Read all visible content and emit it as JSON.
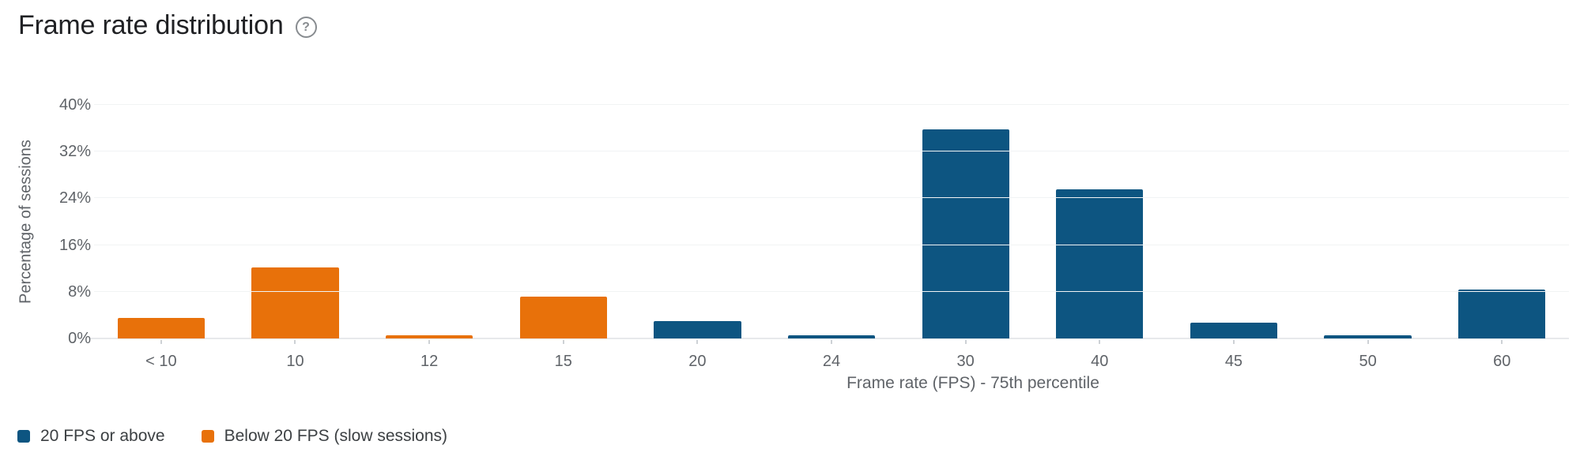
{
  "header": {
    "title": "Frame rate distribution"
  },
  "chart_data": {
    "type": "bar",
    "title": "Frame rate distribution",
    "xlabel": "Frame rate (FPS) - 75th percentile",
    "ylabel": "Percentage of sessions",
    "ylim": [
      0,
      40
    ],
    "grid": true,
    "legend_position": "bottom-left",
    "y_ticks": [
      {
        "label": "40%",
        "value": 40
      },
      {
        "label": "32%",
        "value": 32
      },
      {
        "label": "24%",
        "value": 24
      },
      {
        "label": "16%",
        "value": 16
      },
      {
        "label": "8%",
        "value": 8
      },
      {
        "label": "0%",
        "value": 0
      }
    ],
    "categories": [
      "< 10",
      "10",
      "12",
      "15",
      "20",
      "24",
      "30",
      "40",
      "45",
      "50",
      "60"
    ],
    "series": [
      {
        "name": "20 FPS or above",
        "color": "#0d5581"
      },
      {
        "name": "Below 20 FPS (slow sessions)",
        "color": "#e8710a"
      }
    ],
    "bars": [
      {
        "category": "< 10",
        "value": 3.5,
        "series": "Below 20 FPS (slow sessions)"
      },
      {
        "category": "10",
        "value": 12.2,
        "series": "Below 20 FPS (slow sessions)"
      },
      {
        "category": "12",
        "value": 0.5,
        "series": "Below 20 FPS (slow sessions)"
      },
      {
        "category": "15",
        "value": 7.2,
        "series": "Below 20 FPS (slow sessions)"
      },
      {
        "category": "20",
        "value": 3.0,
        "series": "20 FPS or above"
      },
      {
        "category": "24",
        "value": 0.5,
        "series": "20 FPS or above"
      },
      {
        "category": "30",
        "value": 35.8,
        "series": "20 FPS or above"
      },
      {
        "category": "40",
        "value": 25.5,
        "series": "20 FPS or above"
      },
      {
        "category": "45",
        "value": 2.7,
        "series": "20 FPS or above"
      },
      {
        "category": "50",
        "value": 0.5,
        "series": "20 FPS or above"
      },
      {
        "category": "60",
        "value": 8.4,
        "series": "20 FPS or above"
      }
    ]
  }
}
